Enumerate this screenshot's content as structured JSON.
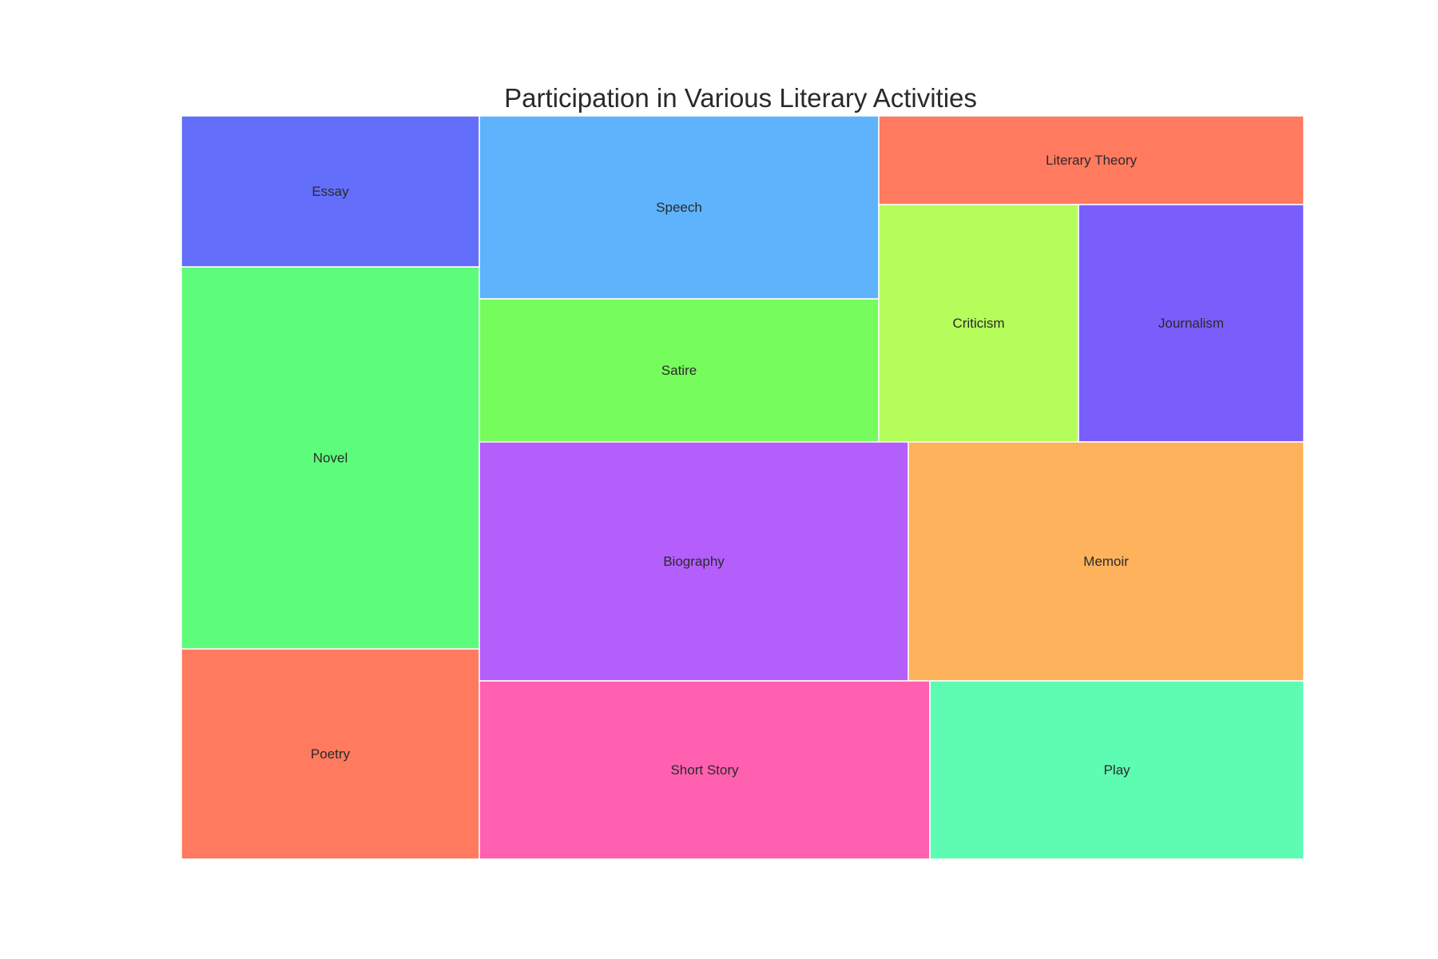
{
  "chart_data": {
    "type": "treemap",
    "title": "Participation in Various Literary Activities",
    "items": [
      {
        "label": "Essay",
        "color": "#636efa"
      },
      {
        "label": "Novel",
        "color": "#5dfc7a"
      },
      {
        "label": "Poetry",
        "color": "#ff7a5f"
      },
      {
        "label": "Speech",
        "color": "#5fb3fd"
      },
      {
        "label": "Satire",
        "color": "#76fc5d"
      },
      {
        "label": "Literary Theory",
        "color": "#ff7a5f"
      },
      {
        "label": "Criticism",
        "color": "#b4fd5b"
      },
      {
        "label": "Journalism",
        "color": "#7a5efc"
      },
      {
        "label": "Biography",
        "color": "#b45efc"
      },
      {
        "label": "Memoir",
        "color": "#fdb25b"
      },
      {
        "label": "Short Story",
        "color": "#ff60b0"
      },
      {
        "label": "Play",
        "color": "#5dfcb2"
      }
    ]
  }
}
